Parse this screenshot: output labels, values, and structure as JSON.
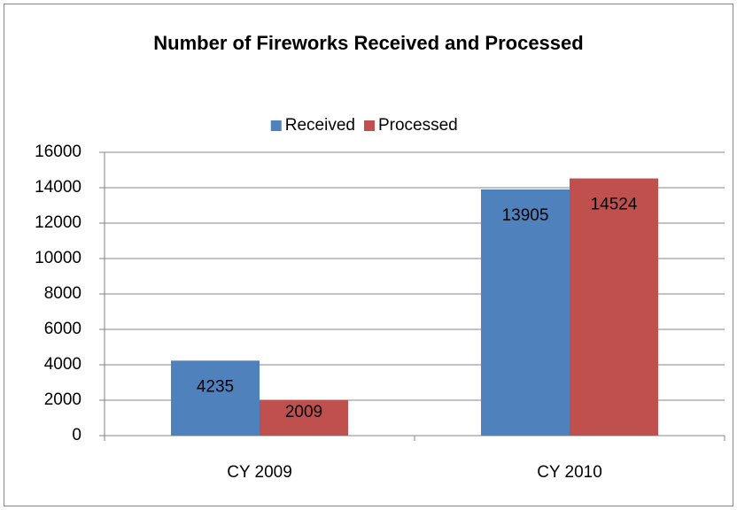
{
  "chart_data": {
    "type": "bar",
    "title": "Number of Fireworks Received and Processed",
    "categories": [
      "CY 2009",
      "CY 2010"
    ],
    "series": [
      {
        "name": "Received",
        "color": "#4f81bd",
        "values": [
          4235,
          13905
        ]
      },
      {
        "name": "Processed",
        "color": "#c0504d",
        "values": [
          2009,
          14524
        ]
      }
    ],
    "ylim": [
      0,
      16000
    ],
    "yticks": [
      0,
      2000,
      4000,
      6000,
      8000,
      10000,
      12000,
      14000,
      16000
    ],
    "grid": true,
    "legend": "top",
    "data_labels": true
  }
}
